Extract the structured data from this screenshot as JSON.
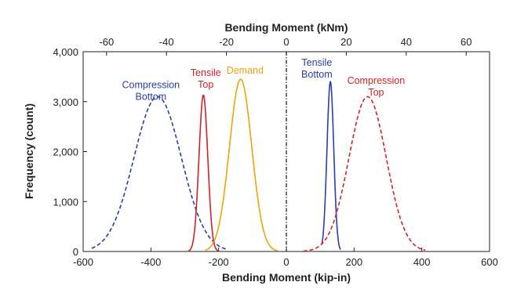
{
  "chart_data": {
    "type": "line",
    "title": "",
    "xlabel": "Bending Moment (kip-in)",
    "ylabel": "Frequency (count)",
    "x2label": "Bending Moment (kNm)",
    "xlim": [
      -600,
      600
    ],
    "ylim": [
      0,
      4000
    ],
    "x2lim": [
      -67.8,
      67.8
    ],
    "grid": false,
    "legend": "none",
    "xticks": [
      -600,
      -400,
      -200,
      0,
      200,
      400,
      600
    ],
    "xtick_labels": [
      "-600",
      "-400",
      "-200",
      "0",
      "200",
      "400",
      "600"
    ],
    "yticks": [
      0,
      1000,
      2000,
      3000,
      4000
    ],
    "ytick_labels": [
      "0",
      "1,000",
      "2,000",
      "3,000",
      "4,000"
    ],
    "x2ticks": [
      -60,
      -40,
      -20,
      0,
      20,
      40,
      60
    ],
    "x2tick_labels": [
      "-60",
      "-40",
      "-20",
      "0",
      "20",
      "40",
      "60"
    ],
    "zero_line": {
      "x": 0,
      "style": "dash-dot",
      "color": "#222222"
    },
    "series": [
      {
        "key": "compression-bottom",
        "color": "#2b3ea6",
        "dash": "dashed",
        "peak": 3100,
        "mean": -380,
        "sd": 70,
        "xrange": [
          -575,
          -175
        ],
        "label_lines": [
          "Compression",
          "Bottom"
        ],
        "label_at": [
          -400,
          3270
        ]
      },
      {
        "key": "tensile-top",
        "color": "#d42027",
        "dash": "solid",
        "peak": 3130,
        "mean": -245,
        "sd": 13,
        "xrange": [
          -290,
          -200
        ],
        "label_lines": [
          "Tensile",
          "Top"
        ],
        "label_at": [
          -238,
          3510
        ]
      },
      {
        "key": "demand",
        "color": "#f0a20a",
        "dash": "solid",
        "peak": 3450,
        "mean": -135,
        "sd": 33,
        "xrange": [
          -240,
          -25
        ],
        "label_lines": [
          "Demand"
        ],
        "label_at": [
          -122,
          3560
        ]
      },
      {
        "key": "tensile-bottom",
        "color": "#2b3ea6",
        "dash": "solid",
        "peak": 3400,
        "mean": 130,
        "sd": 10,
        "xrange": [
          105,
          160
        ],
        "label_lines": [
          "Tensile",
          "Bottom"
        ],
        "label_at": [
          90,
          3720
        ]
      },
      {
        "key": "compression-top",
        "color": "#d42027",
        "dash": "dashed",
        "peak": 3100,
        "mean": 240,
        "sd": 55,
        "xrange": [
          50,
          410
        ],
        "label_lines": [
          "Compression",
          "Top"
        ],
        "label_at": [
          265,
          3360
        ]
      }
    ]
  }
}
